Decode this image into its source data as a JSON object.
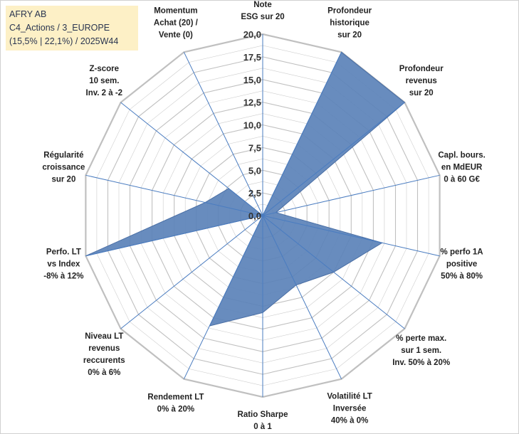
{
  "info": {
    "line1": "AFRY AB",
    "line2": "C4_Actions / 3_EUROPE",
    "line3": "(15,5% | 22,1%) / 2025W44"
  },
  "colors": {
    "fill": "#5b82b8",
    "stroke": "#4a6fa5",
    "grid": "#c0c0c0",
    "spoke": "#4a7cc0"
  },
  "chart_data": {
    "type": "radar",
    "ylim": [
      0,
      20
    ],
    "ticks": [
      "0,0",
      "2,5",
      "5,0",
      "7,5",
      "10,0",
      "12,5",
      "15,0",
      "17,5",
      "20,0"
    ],
    "grid": true,
    "axes": [
      [
        "Note",
        "ESG sur 20"
      ],
      [
        "Profondeur",
        "historique",
        "sur 20"
      ],
      [
        "Profondeur",
        "revenus",
        "sur 20"
      ],
      [
        "Capl. bours.",
        "en MdEUR",
        "0 à 60 G€"
      ],
      [
        "% perfo 1A",
        "positive",
        "50% à 80%"
      ],
      [
        "% perte max.",
        "sur 1 sem.",
        "Inv. 50% à 20%"
      ],
      [
        "Volatilité LT",
        "Inversée",
        "40% à 0%"
      ],
      [
        "Ratio Sharpe",
        "0 à 1"
      ],
      [
        "Rendement LT",
        "0% à 20%"
      ],
      [
        "Niveau LT",
        "revenus",
        "reccurents",
        "0% à 6%"
      ],
      [
        "Perfo. LT",
        "vs Index",
        "-8% à 12%"
      ],
      [
        "Régularité",
        "croissance",
        "sur 20"
      ],
      [
        "Z-score",
        "10 sem.",
        "Inv. 2 à -2"
      ],
      [
        "Momentum",
        "Achat (20) /",
        "Vente (0)"
      ]
    ],
    "values": [
      0,
      20,
      20,
      1.5,
      13.5,
      10,
      8.5,
      10.7,
      13.5,
      0,
      20,
      6.5,
      4.8,
      0
    ]
  }
}
